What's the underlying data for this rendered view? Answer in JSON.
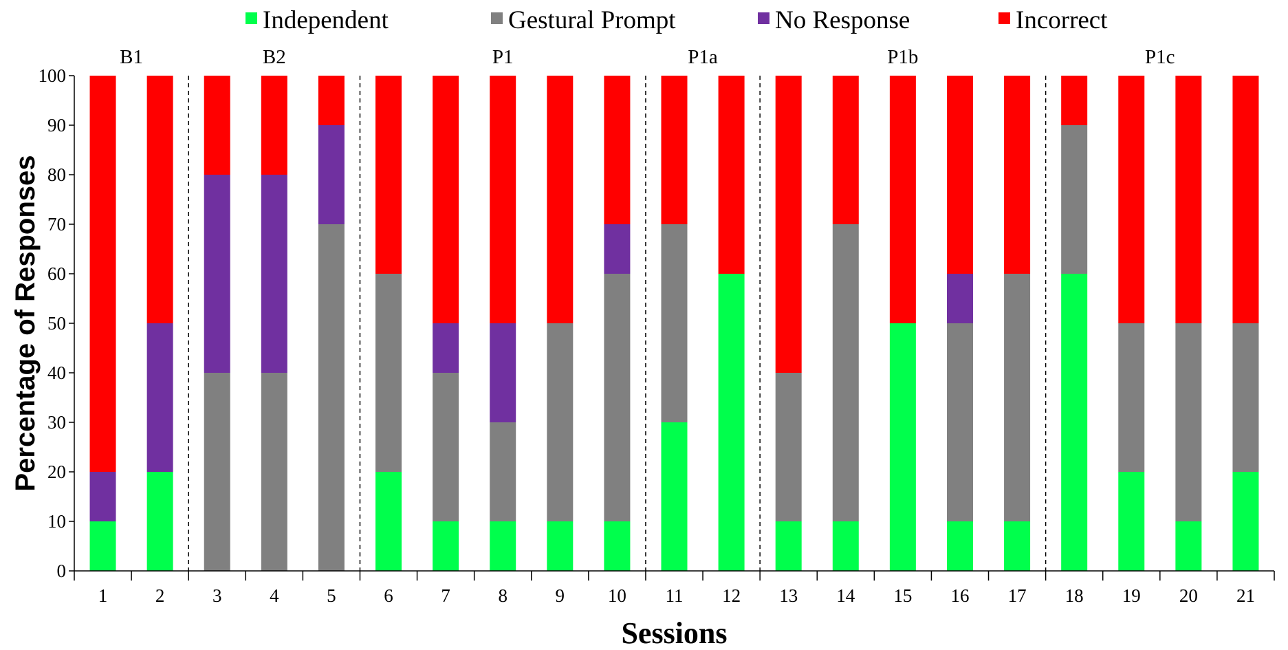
{
  "chart_data": {
    "type": "bar",
    "stacked": true,
    "xlabel": "Sessions",
    "ylabel": "Percentage of Responses",
    "ylim": [
      0,
      100
    ],
    "yticks": [
      0,
      10,
      20,
      30,
      40,
      50,
      60,
      70,
      80,
      90,
      100
    ],
    "categories": [
      "1",
      "2",
      "3",
      "4",
      "5",
      "6",
      "7",
      "8",
      "9",
      "10",
      "11",
      "12",
      "13",
      "14",
      "15",
      "16",
      "17",
      "18",
      "19",
      "20",
      "21"
    ],
    "legend_position": "top",
    "series": [
      {
        "name": "Independent",
        "color": "#00ff4c",
        "values": [
          10,
          20,
          0,
          0,
          0,
          20,
          10,
          10,
          10,
          10,
          30,
          60,
          10,
          10,
          50,
          10,
          10,
          60,
          20,
          10,
          20
        ]
      },
      {
        "name": "Gestural Prompt",
        "color": "#808080",
        "values": [
          0,
          0,
          40,
          40,
          70,
          40,
          30,
          20,
          40,
          50,
          40,
          0,
          30,
          60,
          0,
          40,
          50,
          30,
          30,
          40,
          30
        ]
      },
      {
        "name": "No Response",
        "color": "#7030a0",
        "values": [
          10,
          30,
          40,
          40,
          20,
          0,
          10,
          20,
          0,
          10,
          0,
          0,
          0,
          0,
          0,
          10,
          0,
          0,
          0,
          0,
          0
        ]
      },
      {
        "name": "Incorrect",
        "color": "#ff0000",
        "values": [
          80,
          50,
          20,
          20,
          10,
          40,
          50,
          50,
          50,
          30,
          30,
          40,
          60,
          30,
          50,
          40,
          40,
          10,
          50,
          50,
          50
        ]
      }
    ],
    "phases": [
      {
        "label": "B1",
        "start": 1,
        "end": 2
      },
      {
        "label": "B2",
        "start": 3,
        "end": 5
      },
      {
        "label": "P1",
        "start": 6,
        "end": 10
      },
      {
        "label": "P1a",
        "start": 11,
        "end": 12
      },
      {
        "label": "P1b",
        "start": 13,
        "end": 17
      },
      {
        "label": "P1c",
        "start": 18,
        "end": 21
      }
    ]
  }
}
